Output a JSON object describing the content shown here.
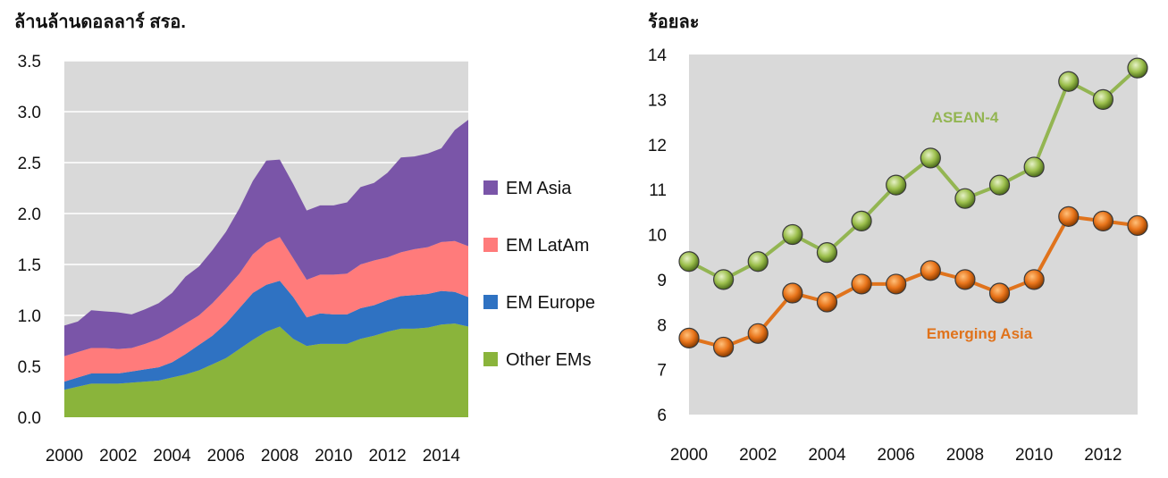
{
  "chart_data": [
    {
      "type": "area",
      "stacked": true,
      "ylabel": "ล้านล้านดอลลาร์ สรอ.",
      "ylim": [
        0,
        3.5
      ],
      "yticks": [
        "0.0",
        "0.5",
        "1.0",
        "1.5",
        "2.0",
        "2.5",
        "3.0",
        "3.5"
      ],
      "xlim": [
        2000,
        2015
      ],
      "xticks": [
        "2000",
        "2002",
        "2004",
        "2006",
        "2008",
        "2010",
        "2012",
        "2014"
      ],
      "grid": true,
      "legend_position": "right",
      "x": [
        2000,
        2000.5,
        2001,
        2001.5,
        2002,
        2002.5,
        2003,
        2003.5,
        2004,
        2004.5,
        2005,
        2005.5,
        2006,
        2006.5,
        2007,
        2007.5,
        2008,
        2008.5,
        2009,
        2009.5,
        2010,
        2010.5,
        2011,
        2011.5,
        2012,
        2012.5,
        2013,
        2013.5,
        2014,
        2014.5,
        2015
      ],
      "series": [
        {
          "name": "Other EMs",
          "color": "#8ab43b",
          "values": [
            0.27,
            0.3,
            0.33,
            0.33,
            0.33,
            0.34,
            0.35,
            0.36,
            0.39,
            0.42,
            0.46,
            0.52,
            0.58,
            0.67,
            0.76,
            0.84,
            0.89,
            0.77,
            0.7,
            0.72,
            0.72,
            0.72,
            0.77,
            0.8,
            0.84,
            0.87,
            0.87,
            0.88,
            0.91,
            0.92,
            0.89
          ]
        },
        {
          "name": "EM Europe",
          "color": "#2f72c2",
          "values": [
            0.08,
            0.09,
            0.1,
            0.1,
            0.1,
            0.11,
            0.12,
            0.13,
            0.15,
            0.2,
            0.25,
            0.28,
            0.34,
            0.4,
            0.46,
            0.46,
            0.45,
            0.41,
            0.28,
            0.3,
            0.29,
            0.29,
            0.3,
            0.3,
            0.31,
            0.32,
            0.33,
            0.33,
            0.33,
            0.31,
            0.29
          ]
        },
        {
          "name": "EM LatAm",
          "color": "#ff7b7b",
          "values": [
            0.25,
            0.25,
            0.25,
            0.25,
            0.24,
            0.23,
            0.25,
            0.28,
            0.3,
            0.3,
            0.29,
            0.32,
            0.34,
            0.34,
            0.38,
            0.41,
            0.43,
            0.38,
            0.37,
            0.38,
            0.39,
            0.4,
            0.43,
            0.44,
            0.42,
            0.43,
            0.45,
            0.46,
            0.48,
            0.5,
            0.5
          ]
        },
        {
          "name": "EM Asia",
          "color": "#7a55a8",
          "values": [
            0.3,
            0.3,
            0.37,
            0.36,
            0.36,
            0.33,
            0.34,
            0.35,
            0.38,
            0.46,
            0.48,
            0.52,
            0.56,
            0.64,
            0.72,
            0.81,
            0.76,
            0.73,
            0.68,
            0.68,
            0.68,
            0.7,
            0.76,
            0.76,
            0.83,
            0.93,
            0.91,
            0.92,
            0.92,
            1.09,
            1.24
          ]
        }
      ]
    },
    {
      "type": "line",
      "ylabel": "ร้อยละ",
      "ylim": [
        6,
        14
      ],
      "yticks": [
        "6",
        "7",
        "8",
        "9",
        "10",
        "11",
        "12",
        "13",
        "14"
      ],
      "xlim": [
        2000,
        2013
      ],
      "xticks": [
        "2000",
        "2002",
        "2004",
        "2006",
        "2008",
        "2010",
        "2012"
      ],
      "grid": false,
      "x": [
        2000,
        2001,
        2002,
        2003,
        2004,
        2005,
        2006,
        2007,
        2008,
        2009,
        2010,
        2011,
        2012,
        2013
      ],
      "series": [
        {
          "name": "ASEAN-4",
          "color": "#93b552",
          "values": [
            9.4,
            9.0,
            9.4,
            10.0,
            9.6,
            10.3,
            11.1,
            11.7,
            10.8,
            11.1,
            11.5,
            13.4,
            13.0,
            13.7
          ]
        },
        {
          "name": "Emerging Asia",
          "color": "#e0731c",
          "values": [
            7.7,
            7.5,
            7.8,
            8.7,
            8.5,
            8.9,
            8.9,
            9.2,
            9.0,
            8.7,
            9.0,
            10.4,
            10.3,
            10.2
          ]
        }
      ]
    }
  ]
}
